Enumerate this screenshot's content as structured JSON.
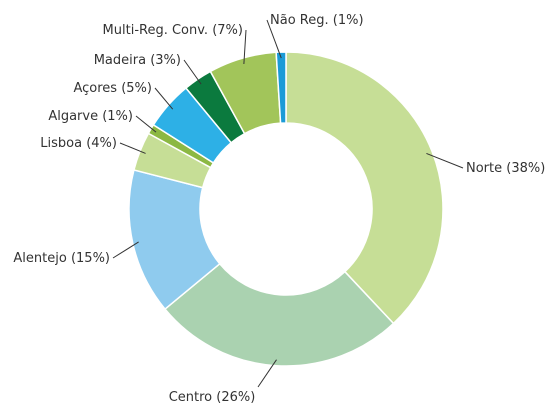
{
  "chart_data": {
    "type": "donut",
    "categories": [
      "Norte",
      "Centro",
      "Alentejo",
      "Lisboa",
      "Algarve",
      "Açores",
      "Madeira",
      "Multi-Reg. Conv.",
      "Não Reg."
    ],
    "values": [
      38,
      26,
      15,
      4,
      1,
      5,
      3,
      7,
      1
    ],
    "value_labels": [
      "(38%)",
      "(26%)",
      "(15%)",
      "(4%)",
      "(1%)",
      "(5%)",
      "(3%)",
      "(7%)",
      "(1%)"
    ],
    "colors": [
      "#c6de96",
      "#aad2b0",
      "#8fcbee",
      "#c6de96",
      "#8cb843",
      "#2db0e6",
      "#0b7a3e",
      "#a2c55a",
      "#1b9bd7"
    ]
  }
}
